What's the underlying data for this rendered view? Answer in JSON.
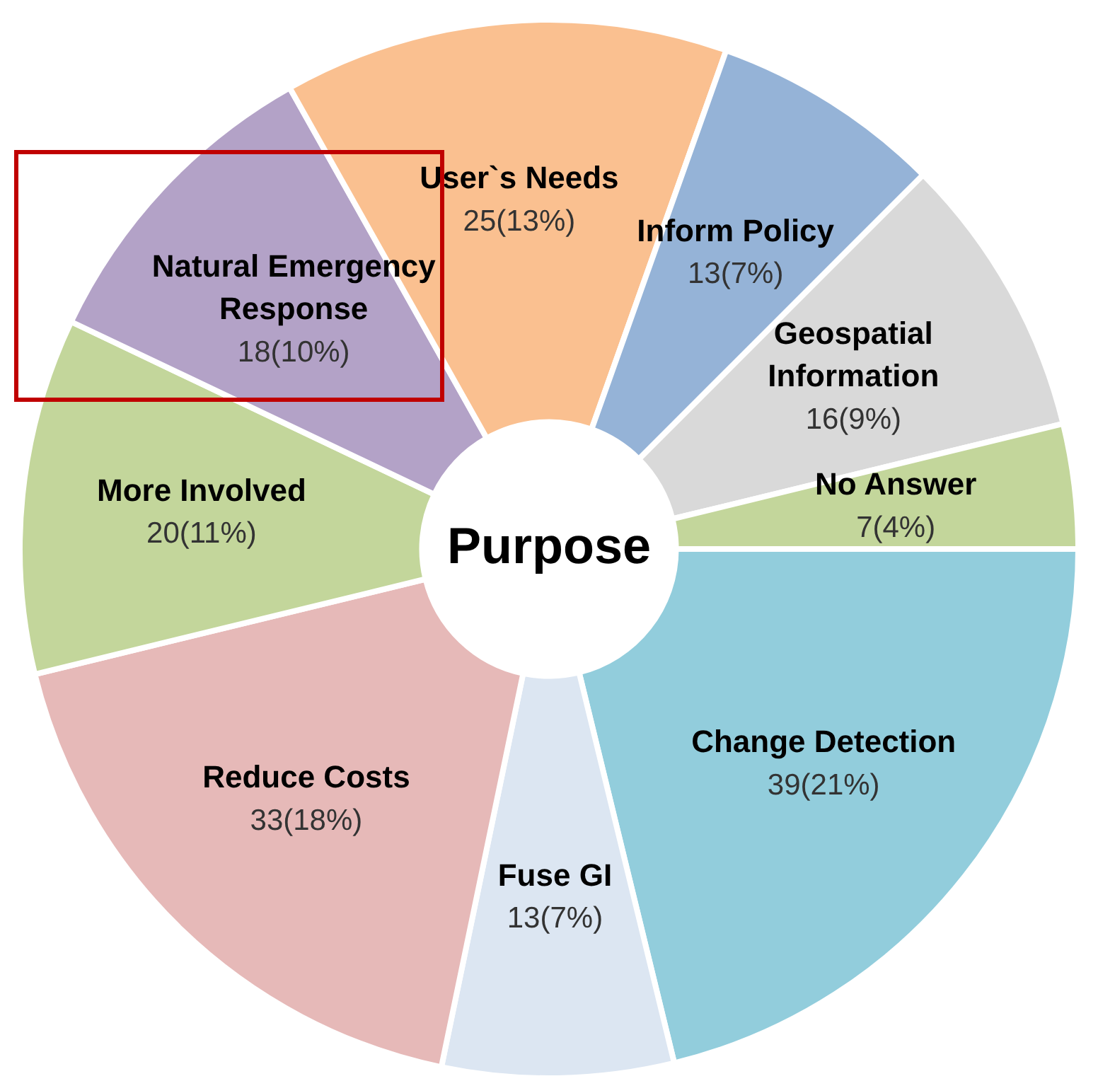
{
  "chart_data": {
    "type": "donut",
    "title": "Purpose",
    "categories": [
      "Change Detection",
      "Fuse GI",
      "Reduce Costs",
      "More Involved",
      "Natural Emergency Response",
      "User`s Needs",
      "Inform Policy",
      "Geospatial Information",
      "No Answer"
    ],
    "values": [
      39,
      13,
      33,
      20,
      18,
      25,
      13,
      16,
      7
    ],
    "value_labels": [
      "39(21%)",
      "13(7%)",
      "33(18%)",
      "20(11%)",
      "18(10%)",
      "25(13%)",
      "13(7%)",
      "16(9%)",
      "7(4%)"
    ],
    "colors": [
      "#92cddc",
      "#dce6f2",
      "#e6b9b8",
      "#c3d69b",
      "#b3a2c7",
      "#fac090",
      "#95b3d7",
      "#d9d9d9",
      "#c3d69b"
    ],
    "legend": false
  }
}
